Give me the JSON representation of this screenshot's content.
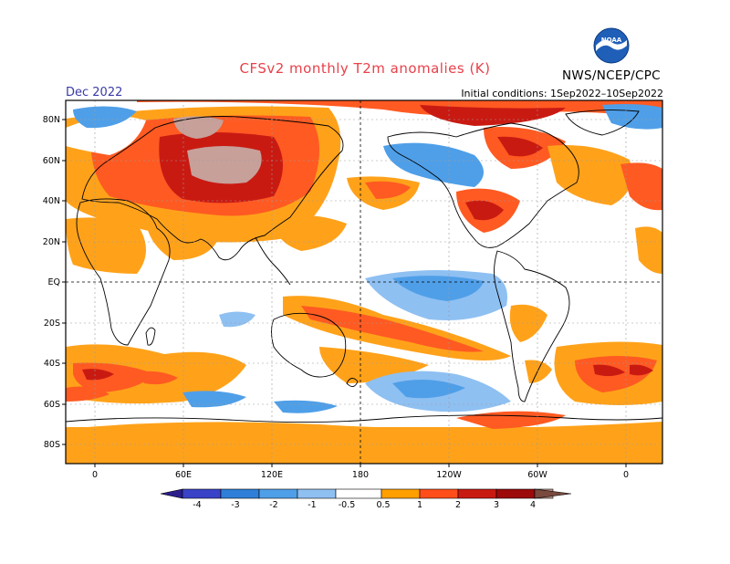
{
  "header": {
    "title": "CFSv2 monthly T2m anomalies (K)",
    "period": "Dec 2022",
    "initial_conditions": "Initial conditions: 1Sep2022–10Sep2022",
    "org": "NWS/NCEP/CPC",
    "logo_text": "NOAA"
  },
  "axes": {
    "lat_labels": [
      "80N",
      "60N",
      "40N",
      "20N",
      "EQ",
      "20S",
      "40S",
      "60S",
      "80S"
    ],
    "lon_labels": [
      "0",
      "60E",
      "120E",
      "180",
      "120W",
      "60W",
      "0"
    ]
  },
  "colorbar": {
    "labels": [
      "-4",
      "-3",
      "-2",
      "-1",
      "-0.5",
      "0.5",
      "1",
      "2",
      "3",
      "4"
    ],
    "colors": [
      "#2b1d8c",
      "#3a42c8",
      "#2f7fd8",
      "#4f9fe8",
      "#8fc0f2",
      "#ffffff",
      "#ff9f00",
      "#ff4e1a",
      "#e01e10",
      "#9c0a0a",
      "#c49a8c",
      "#7a4a3e"
    ]
  },
  "palette": {
    "land_outline": "#000000",
    "grid": "#9a9a9a",
    "title_color": "#e8414a",
    "period_color": "#3a3aa8"
  }
}
